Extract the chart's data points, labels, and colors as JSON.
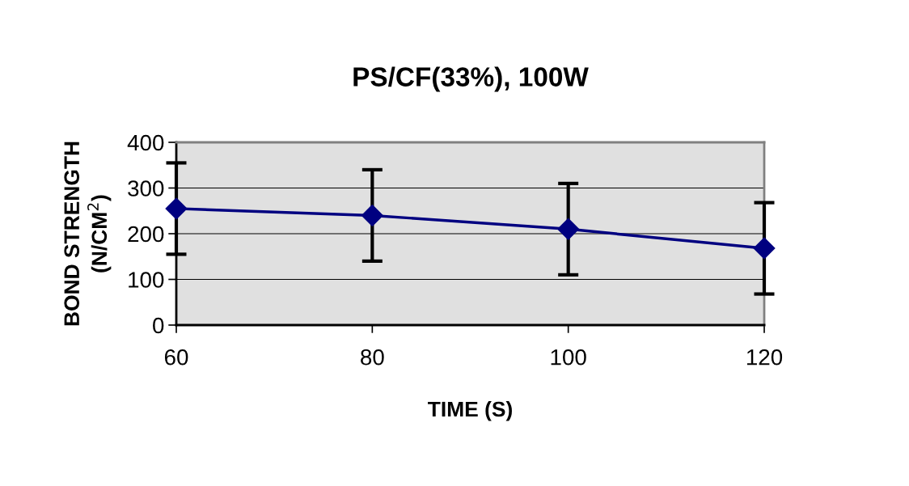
{
  "chart_data": {
    "type": "line",
    "title": "PS/CF(33%), 100W",
    "xlabel": "TIME (S)",
    "ylabel": "BOND STRENGTH\n(N/CM$^{2}$)",
    "x": [
      60,
      80,
      100,
      120
    ],
    "series": [
      {
        "color": "#000080",
        "values": [
          255,
          240,
          210,
          168
        ],
        "errors": [
          100,
          100,
          100,
          100
        ]
      }
    ],
    "xlim": [
      60,
      120
    ],
    "xticks": [
      60,
      80,
      100,
      120
    ],
    "ylim": [
      0,
      400
    ],
    "yticks": [
      0,
      100,
      200,
      300,
      400
    ],
    "grid": "y",
    "marker": "diamond",
    "line_style": "solid"
  }
}
